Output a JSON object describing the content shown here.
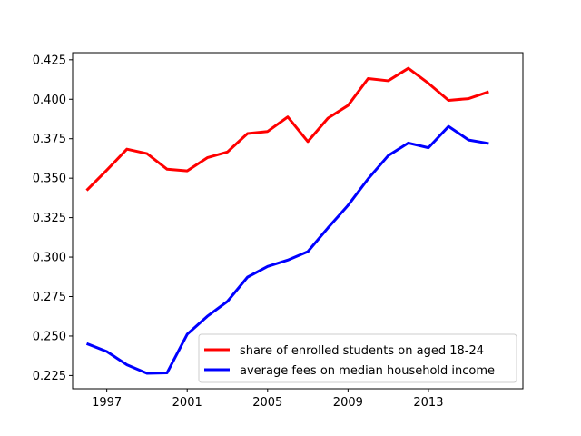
{
  "chart_data": {
    "type": "line",
    "title": "",
    "xlabel": "",
    "ylabel": "",
    "xlim": [
      1995.3,
      2017.7
    ],
    "ylim": [
      0.2166,
      0.4295
    ],
    "x_ticks": [
      1997,
      2001,
      2005,
      2009,
      2013
    ],
    "x_tick_labels": [
      "1997",
      "2001",
      "2005",
      "2009",
      "2013"
    ],
    "y_ticks": [
      0.225,
      0.25,
      0.275,
      0.3,
      0.325,
      0.35,
      0.375,
      0.4,
      0.425
    ],
    "y_tick_labels": [
      "0.225",
      "0.250",
      "0.275",
      "0.300",
      "0.325",
      "0.350",
      "0.375",
      "0.400",
      "0.425"
    ],
    "grid": false,
    "legend_position": "lower-right",
    "x": [
      1996,
      1997,
      1998,
      1999,
      2000,
      2001,
      2002,
      2003,
      2004,
      2005,
      2006,
      2007,
      2008,
      2009,
      2010,
      2011,
      2012,
      2013,
      2014,
      2015,
      2016
    ],
    "series": [
      {
        "name": "share of enrolled students on aged 18-24",
        "color": "#ff0000",
        "values": [
          0.3423,
          0.3551,
          0.3684,
          0.3656,
          0.3557,
          0.3546,
          0.363,
          0.3666,
          0.3783,
          0.3796,
          0.3888,
          0.3732,
          0.388,
          0.3961,
          0.4131,
          0.4117,
          0.4196,
          0.4101,
          0.3993,
          0.4004,
          0.4047
        ]
      },
      {
        "name": "average fees on median household income",
        "color": "#0000ff",
        "values": [
          0.2452,
          0.2402,
          0.2318,
          0.2264,
          0.2267,
          0.2511,
          0.2625,
          0.2719,
          0.2873,
          0.2941,
          0.2981,
          0.3035,
          0.3185,
          0.3328,
          0.3496,
          0.3643,
          0.3723,
          0.3693,
          0.3828,
          0.3742,
          0.372
        ]
      }
    ]
  }
}
